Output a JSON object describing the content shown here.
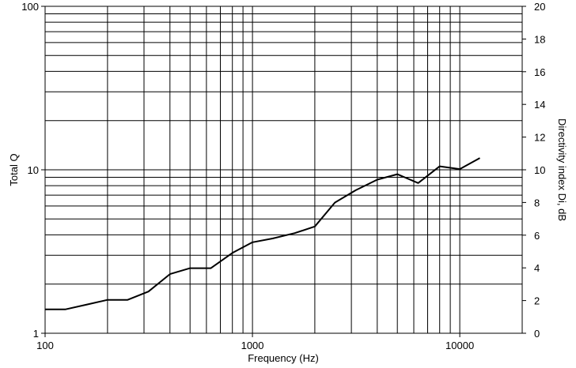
{
  "chart_data": {
    "type": "line",
    "xlabel": "Frequency (Hz)",
    "ylabel": "Total Q",
    "y2label": "Directivity index Di, dB",
    "x_scale": "log",
    "y_scale": "log",
    "xlim": [
      100,
      20000
    ],
    "ylim": [
      1,
      100
    ],
    "y2lim": [
      0,
      20
    ],
    "grid": true,
    "x_ticks": [
      100,
      1000,
      10000
    ],
    "x_tick_labels": [
      "100",
      "1000",
      "10000"
    ],
    "y_ticks": [
      1,
      10,
      100
    ],
    "y_tick_labels": [
      "1",
      "10",
      "100"
    ],
    "y2_ticks": [
      0,
      2,
      4,
      6,
      8,
      10,
      12,
      14,
      16,
      18,
      20
    ],
    "y2_tick_labels": [
      "0",
      "2",
      "4",
      "6",
      "8",
      "10",
      "12",
      "14",
      "16",
      "18",
      "20"
    ],
    "series": [
      {
        "x": [
          100,
          125,
          160,
          200,
          250,
          315,
          400,
          500,
          630,
          800,
          1000,
          1250,
          1600,
          2000,
          2500,
          3150,
          4000,
          5000,
          6300,
          8000,
          10000,
          12500
        ],
        "y": [
          1.4,
          1.4,
          1.5,
          1.6,
          1.6,
          1.8,
          2.3,
          2.5,
          2.5,
          3.1,
          3.6,
          3.8,
          4.1,
          4.5,
          6.3,
          7.5,
          8.7,
          9.4,
          8.3,
          10.5,
          10.1,
          11.8
        ]
      }
    ]
  }
}
